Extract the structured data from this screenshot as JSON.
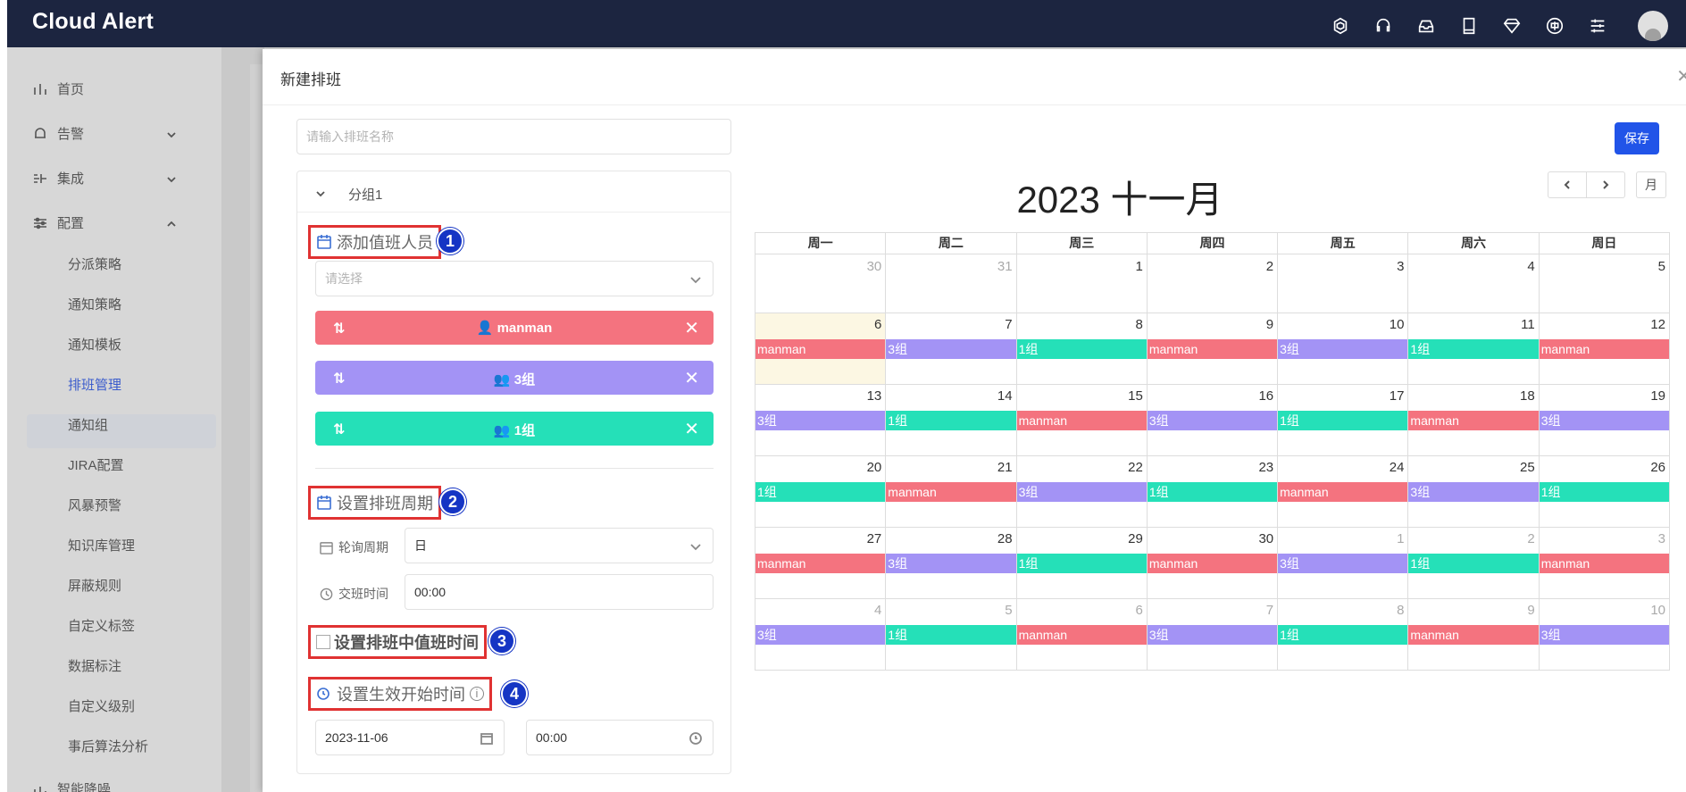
{
  "app": {
    "brand": "Cloud Alert"
  },
  "topbar": {
    "icons": [
      "openai-icon",
      "headset-icon",
      "inbox-icon",
      "book-icon",
      "diamond-icon",
      "translate-icon",
      "sliders-icon",
      "avatar"
    ]
  },
  "sidebar": {
    "items": [
      {
        "label": "首页",
        "icon": "bar-chart-icon"
      },
      {
        "label": "告警",
        "icon": "alarm-icon"
      },
      {
        "label": "集成",
        "icon": "integration-icon"
      },
      {
        "label": "配置",
        "icon": "settings-sliders-icon"
      }
    ],
    "subitems": [
      "分派策略",
      "通知策略",
      "通知模板",
      "排班管理",
      "通知组",
      "JIRA配置",
      "风暴预警",
      "知识库管理",
      "屏蔽规则",
      "自定义标签",
      "数据标注",
      "自定义级别",
      "事后算法分析"
    ],
    "active_sub": "排班管理",
    "next_item": "智能降噪"
  },
  "drawer": {
    "title": "新建排班",
    "name_placeholder": "请输入排班名称",
    "save": "保存",
    "group_title": "分组1",
    "section1": "添加值班人员",
    "section2": "设置排班周期",
    "section3": "设置排班中值班时间",
    "section4": "设置生效开始时间",
    "badges": [
      "1",
      "2",
      "3",
      "4"
    ],
    "select_placeholder": "请选择",
    "members": [
      {
        "name": "manman",
        "type": "user",
        "color": "#f4737f"
      },
      {
        "name": "3组",
        "type": "group",
        "color": "#a393f5"
      },
      {
        "name": "1组",
        "type": "group",
        "color": "#25e0b8"
      }
    ],
    "period_label": "轮询周期",
    "period_value": "日",
    "shift_label": "交班时间",
    "shift_value": "00:00",
    "start_date": "2023-11-06",
    "start_time": "00:00"
  },
  "calendar": {
    "title": "2023 十一月",
    "month_button": "月",
    "weekdays": [
      "周一",
      "周二",
      "周三",
      "周四",
      "周五",
      "周六",
      "周日"
    ],
    "colors": {
      "manman": "#f4737f",
      "3组": "#a393f5",
      "1组": "#25e0b8"
    },
    "weeks": [
      [
        {
          "d": "30",
          "o": true,
          "e": ""
        },
        {
          "d": "31",
          "o": true,
          "e": ""
        },
        {
          "d": "1",
          "e": ""
        },
        {
          "d": "2",
          "e": ""
        },
        {
          "d": "3",
          "e": ""
        },
        {
          "d": "4",
          "e": ""
        },
        {
          "d": "5",
          "e": ""
        }
      ],
      [
        {
          "d": "6",
          "e": "manman",
          "t": true
        },
        {
          "d": "7",
          "e": "3组"
        },
        {
          "d": "8",
          "e": "1组"
        },
        {
          "d": "9",
          "e": "manman"
        },
        {
          "d": "10",
          "e": "3组"
        },
        {
          "d": "11",
          "e": "1组"
        },
        {
          "d": "12",
          "e": "manman"
        }
      ],
      [
        {
          "d": "13",
          "e": "3组"
        },
        {
          "d": "14",
          "e": "1组"
        },
        {
          "d": "15",
          "e": "manman"
        },
        {
          "d": "16",
          "e": "3组"
        },
        {
          "d": "17",
          "e": "1组"
        },
        {
          "d": "18",
          "e": "manman"
        },
        {
          "d": "19",
          "e": "3组"
        }
      ],
      [
        {
          "d": "20",
          "e": "1组"
        },
        {
          "d": "21",
          "e": "manman"
        },
        {
          "d": "22",
          "e": "3组"
        },
        {
          "d": "23",
          "e": "1组"
        },
        {
          "d": "24",
          "e": "manman"
        },
        {
          "d": "25",
          "e": "3组"
        },
        {
          "d": "26",
          "e": "1组"
        }
      ],
      [
        {
          "d": "27",
          "e": "manman"
        },
        {
          "d": "28",
          "e": "3组"
        },
        {
          "d": "29",
          "e": "1组"
        },
        {
          "d": "30",
          "e": "manman"
        },
        {
          "d": "1",
          "o": true,
          "e": "3组"
        },
        {
          "d": "2",
          "o": true,
          "e": "1组"
        },
        {
          "d": "3",
          "o": true,
          "e": "manman"
        }
      ],
      [
        {
          "d": "4",
          "o": true,
          "e": "3组"
        },
        {
          "d": "5",
          "o": true,
          "e": "1组"
        },
        {
          "d": "6",
          "o": true,
          "e": "manman"
        },
        {
          "d": "7",
          "o": true,
          "e": "3组"
        },
        {
          "d": "8",
          "o": true,
          "e": "1组"
        },
        {
          "d": "9",
          "o": true,
          "e": "manman"
        },
        {
          "d": "10",
          "o": true,
          "e": "3组"
        }
      ]
    ]
  }
}
